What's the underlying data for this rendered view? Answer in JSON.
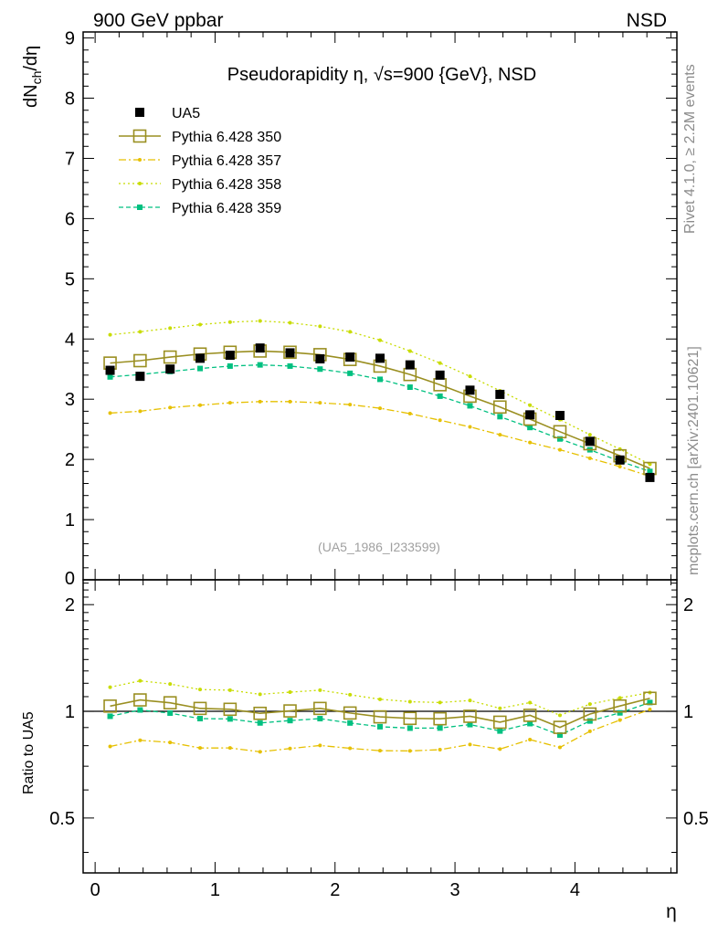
{
  "header": {
    "left": "900 GeV ppbar",
    "right": "NSD"
  },
  "side_labels": {
    "rivet": "Rivet 4.1.0, ≥ 2.2M events",
    "mcplots": "mcplots.cern.ch [arXiv:2401.10621]"
  },
  "colors": {
    "UA5": "#000000",
    "p350": "#9a8f21",
    "p357": "#e6c000",
    "p358": "#c8dc00",
    "p359": "#00c080"
  },
  "chart_data": {
    "type": "line",
    "title": "Pseudorapidity η, √s=900 {GeV}, NSD",
    "watermark": "(UA5_1986_I233599)",
    "ylabel": "dN_ch/dη",
    "ratio_ylabel": "Ratio to UA5",
    "xlabel": "η",
    "xlim": [
      -0.1,
      4.85
    ],
    "ylim": [
      0,
      9.1
    ],
    "ratio_ylim": [
      0.35,
      2.35
    ],
    "x_ticks": [
      "0",
      "1",
      "2",
      "3",
      "4"
    ],
    "y_ticks": [
      "1",
      "2",
      "3",
      "4",
      "5",
      "6",
      "7",
      "8",
      "9"
    ],
    "y_tick_zero": "0",
    "ratio_ticks": [
      "0.5",
      "1",
      "2"
    ],
    "x": [
      0.125,
      0.375,
      0.625,
      0.875,
      1.125,
      1.375,
      1.625,
      1.875,
      2.125,
      2.375,
      2.625,
      2.875,
      3.125,
      3.375,
      3.625,
      3.875,
      4.125,
      4.375,
      4.625
    ],
    "series": [
      {
        "name": "UA5",
        "key": "UA5",
        "values": [
          3.48,
          3.38,
          3.5,
          3.68,
          3.73,
          3.85,
          3.77,
          3.67,
          3.7,
          3.68,
          3.57,
          3.4,
          3.15,
          3.08,
          2.74,
          2.73,
          2.3,
          1.99,
          1.7
        ]
      },
      {
        "name": "Pythia 6.428 350",
        "key": "p350",
        "values": [
          3.6,
          3.64,
          3.7,
          3.75,
          3.78,
          3.8,
          3.78,
          3.74,
          3.66,
          3.55,
          3.41,
          3.24,
          3.05,
          2.87,
          2.67,
          2.46,
          2.26,
          2.06,
          1.85
        ]
      },
      {
        "name": "Pythia 6.428 357",
        "key": "p357",
        "values": [
          2.77,
          2.8,
          2.86,
          2.9,
          2.94,
          2.96,
          2.96,
          2.94,
          2.91,
          2.85,
          2.76,
          2.65,
          2.54,
          2.41,
          2.28,
          2.16,
          2.02,
          1.88,
          1.72
        ]
      },
      {
        "name": "Pythia 6.428 358",
        "key": "p358",
        "values": [
          4.07,
          4.12,
          4.18,
          4.24,
          4.28,
          4.3,
          4.27,
          4.21,
          4.12,
          3.98,
          3.8,
          3.6,
          3.38,
          3.14,
          2.9,
          2.66,
          2.41,
          2.17,
          1.92
        ]
      },
      {
        "name": "Pythia 6.428 359",
        "key": "p359",
        "values": [
          3.37,
          3.41,
          3.46,
          3.51,
          3.55,
          3.57,
          3.55,
          3.5,
          3.43,
          3.33,
          3.2,
          3.05,
          2.89,
          2.71,
          2.53,
          2.34,
          2.16,
          1.97,
          1.8
        ]
      }
    ]
  }
}
